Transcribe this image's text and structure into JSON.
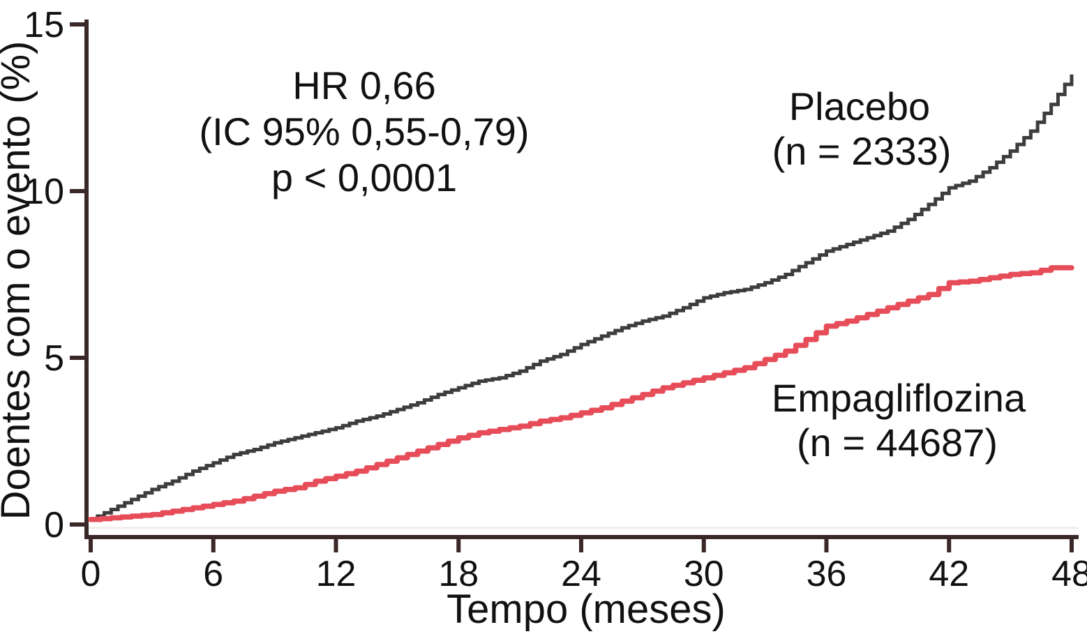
{
  "chart_data": {
    "type": "line",
    "subtype": "kaplan-meier-cumulative-incidence",
    "title": "",
    "xlabel": "Tempo (meses)",
    "ylabel": "Doentes com o evento (%)",
    "xlim": [
      0,
      48
    ],
    "ylim": [
      0,
      15
    ],
    "x_ticks": [
      0,
      6,
      12,
      18,
      24,
      30,
      36,
      42,
      48
    ],
    "y_ticks": [
      0,
      5,
      10,
      15
    ],
    "grid": false,
    "legend_position": "inline-labels",
    "axis_color": "#3a2828",
    "annotation": {
      "lines": [
        "HR 0,66",
        "(IC 95% 0,55-0,79)",
        "p < 0,0001"
      ],
      "color": "#111111"
    },
    "x": [
      0,
      1,
      2,
      3,
      4,
      5,
      6,
      7,
      8,
      9,
      10,
      11,
      12,
      13,
      14,
      15,
      16,
      17,
      18,
      19,
      20,
      21,
      22,
      23,
      24,
      25,
      26,
      27,
      28,
      29,
      30,
      31,
      32,
      33,
      34,
      35,
      36,
      37,
      38,
      39,
      40,
      41,
      42,
      43,
      44,
      45,
      46,
      47,
      48
    ],
    "series": [
      {
        "name": "Placebo",
        "label_lines": [
          "Placebo",
          "(n = 2333)"
        ],
        "n": 2333,
        "color": "#3d3d3d",
        "label_color": "#111111",
        "values": [
          0.15,
          0.45,
          0.75,
          1.05,
          1.3,
          1.6,
          1.85,
          2.1,
          2.25,
          2.45,
          2.6,
          2.75,
          2.9,
          3.1,
          3.25,
          3.45,
          3.65,
          3.9,
          4.1,
          4.3,
          4.4,
          4.6,
          4.9,
          5.1,
          5.4,
          5.65,
          5.9,
          6.1,
          6.25,
          6.5,
          6.8,
          6.95,
          7.05,
          7.25,
          7.5,
          7.85,
          8.2,
          8.4,
          8.6,
          8.8,
          9.15,
          9.6,
          10.1,
          10.3,
          10.7,
          11.2,
          11.8,
          12.6,
          13.5
        ]
      },
      {
        "name": "Empagliflozina",
        "label_lines": [
          "Empagliflozina",
          "(n = 44687)"
        ],
        "n": 44687,
        "color": "#e64d59",
        "label_color": "#dd5f6b",
        "values": [
          0.15,
          0.2,
          0.25,
          0.3,
          0.4,
          0.5,
          0.6,
          0.7,
          0.85,
          1.0,
          1.1,
          1.3,
          1.45,
          1.6,
          1.8,
          2.0,
          2.2,
          2.4,
          2.6,
          2.75,
          2.85,
          2.95,
          3.1,
          3.2,
          3.35,
          3.5,
          3.7,
          3.9,
          4.1,
          4.25,
          4.4,
          4.55,
          4.7,
          4.95,
          5.2,
          5.55,
          5.95,
          6.1,
          6.3,
          6.5,
          6.7,
          6.9,
          7.25,
          7.3,
          7.4,
          7.5,
          7.55,
          7.7,
          7.7
        ]
      }
    ]
  }
}
